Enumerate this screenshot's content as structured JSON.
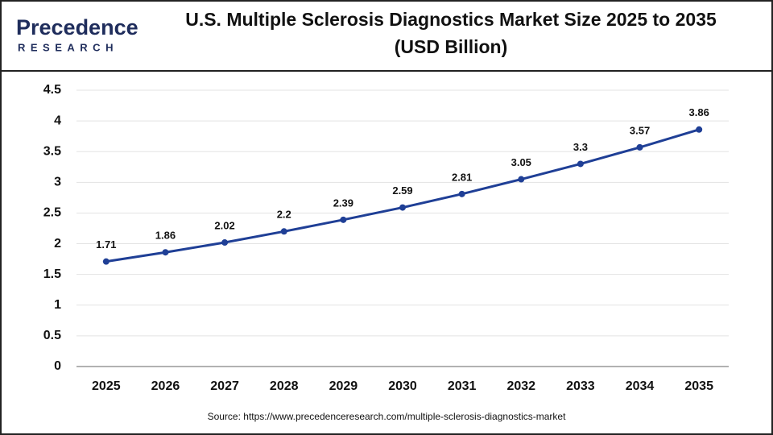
{
  "logo": {
    "name": "Precedence",
    "tagline": "RESEARCH"
  },
  "chart_data": {
    "type": "line",
    "title": [
      "U.S. Multiple Sclerosis Diagnostics Market Size 2025 to 2035",
      "(USD Billion)"
    ],
    "categories": [
      "2025",
      "2026",
      "2027",
      "2028",
      "2029",
      "2030",
      "2031",
      "2032",
      "2033",
      "2034",
      "2035"
    ],
    "values": [
      1.71,
      1.86,
      2.02,
      2.2,
      2.39,
      2.59,
      2.81,
      3.05,
      3.3,
      3.57,
      3.86
    ],
    "color": "#1f3f96",
    "ylim": [
      0,
      4.5
    ],
    "yticks": [
      0,
      0.5,
      1,
      1.5,
      2,
      2.5,
      3,
      3.5,
      4,
      4.5
    ],
    "grid": true,
    "source": "Source: https://www.precedenceresearch.com/multiple-sclerosis-diagnostics-market"
  }
}
